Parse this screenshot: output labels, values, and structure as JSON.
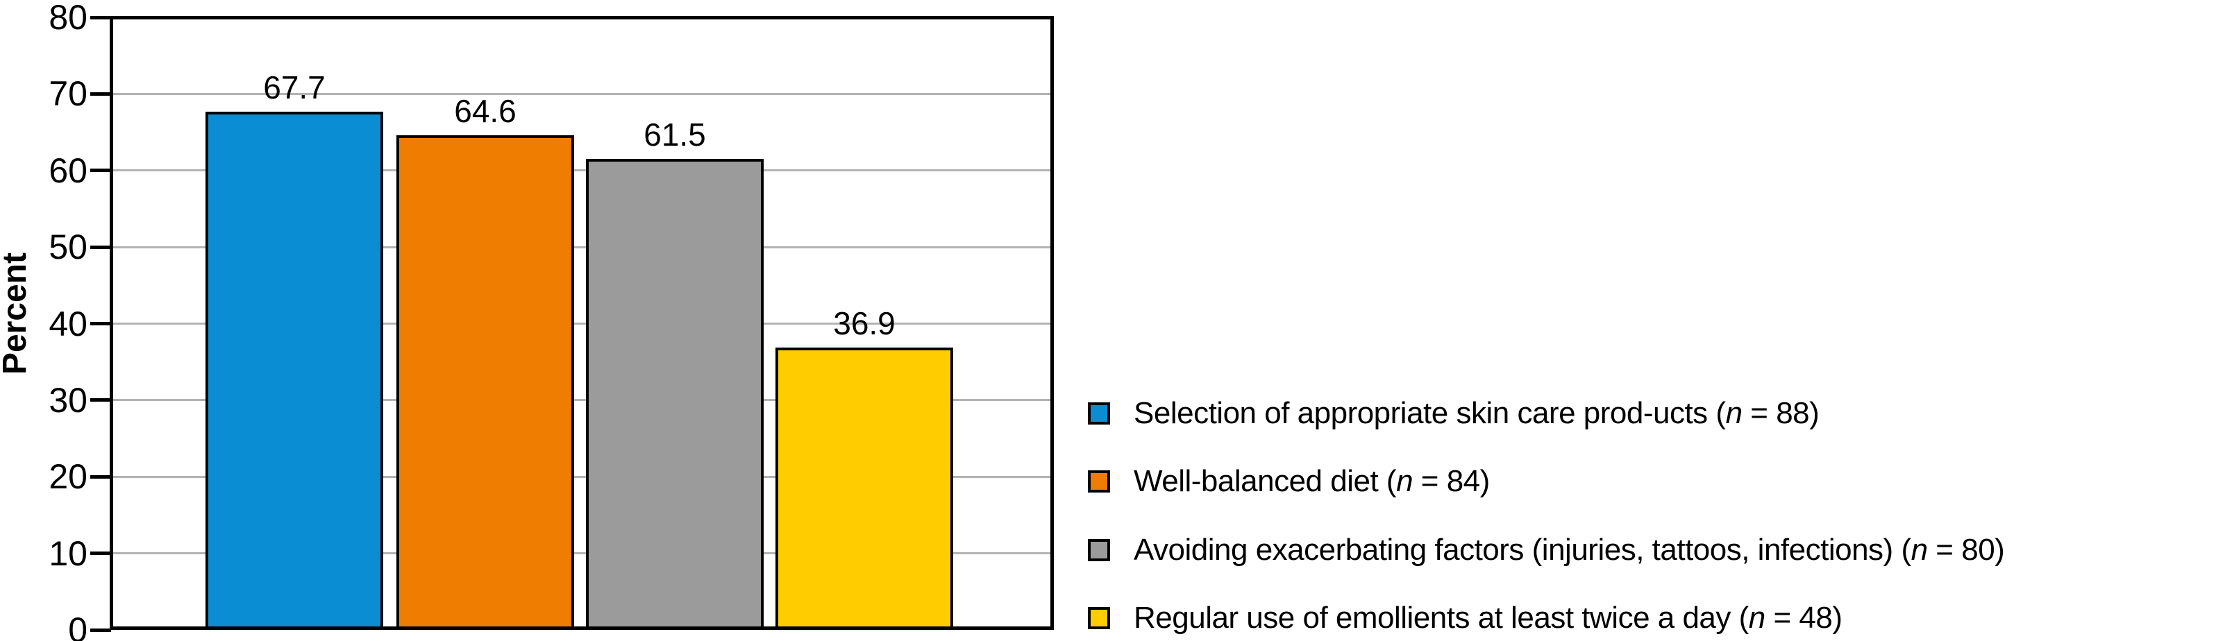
{
  "chart_data": {
    "type": "bar",
    "title": "",
    "xlabel": "",
    "ylabel": "Percent",
    "ylim": [
      0,
      80
    ],
    "ytick_step": 10,
    "yticks": [
      "0",
      "10",
      "20",
      "30",
      "40",
      "50",
      "60",
      "70",
      "80"
    ],
    "grid": "horizontal-gray",
    "legend_position": "right",
    "axis_color": "#000000",
    "grid_color": "#b3b3b3",
    "background_color": "#ffffff",
    "categories": [
      "Selection of appropriate skin care prod-ucts (n = 88)",
      "Well-balanced diet (n = 84)",
      "Avoiding exacerbating factors (injuries, tattoos, infections) (n = 80)",
      "Regular use of emollients at least twice a day (n = 48)"
    ],
    "values": [
      67.7,
      64.6,
      61.5,
      36.9
    ],
    "n_values": [
      88,
      84,
      80,
      48
    ],
    "bars": [
      {
        "value": 67.7,
        "value_label": "67.7",
        "color": "#0a8dd3",
        "legend_pre": "Selection of appropriate skin care prod-ucts (",
        "legend_italic": "n",
        "legend_post": " = 88)"
      },
      {
        "value": 64.6,
        "value_label": "64.6",
        "color": "#ee7d01",
        "legend_pre": "Well-balanced diet (",
        "legend_italic": "n",
        "legend_post": " = 84)"
      },
      {
        "value": 61.5,
        "value_label": "61.5",
        "color": "#9b9b9b",
        "legend_pre": "Avoiding exacerbating factors (injuries, tattoos, infections) (",
        "legend_italic": "n",
        "legend_post": " = 80)"
      },
      {
        "value": 36.9,
        "value_label": "36.9",
        "color": "#ffcc00",
        "legend_pre": "Regular use of emollients at least twice a day (",
        "legend_italic": "n",
        "legend_post": " = 48)"
      }
    ]
  }
}
